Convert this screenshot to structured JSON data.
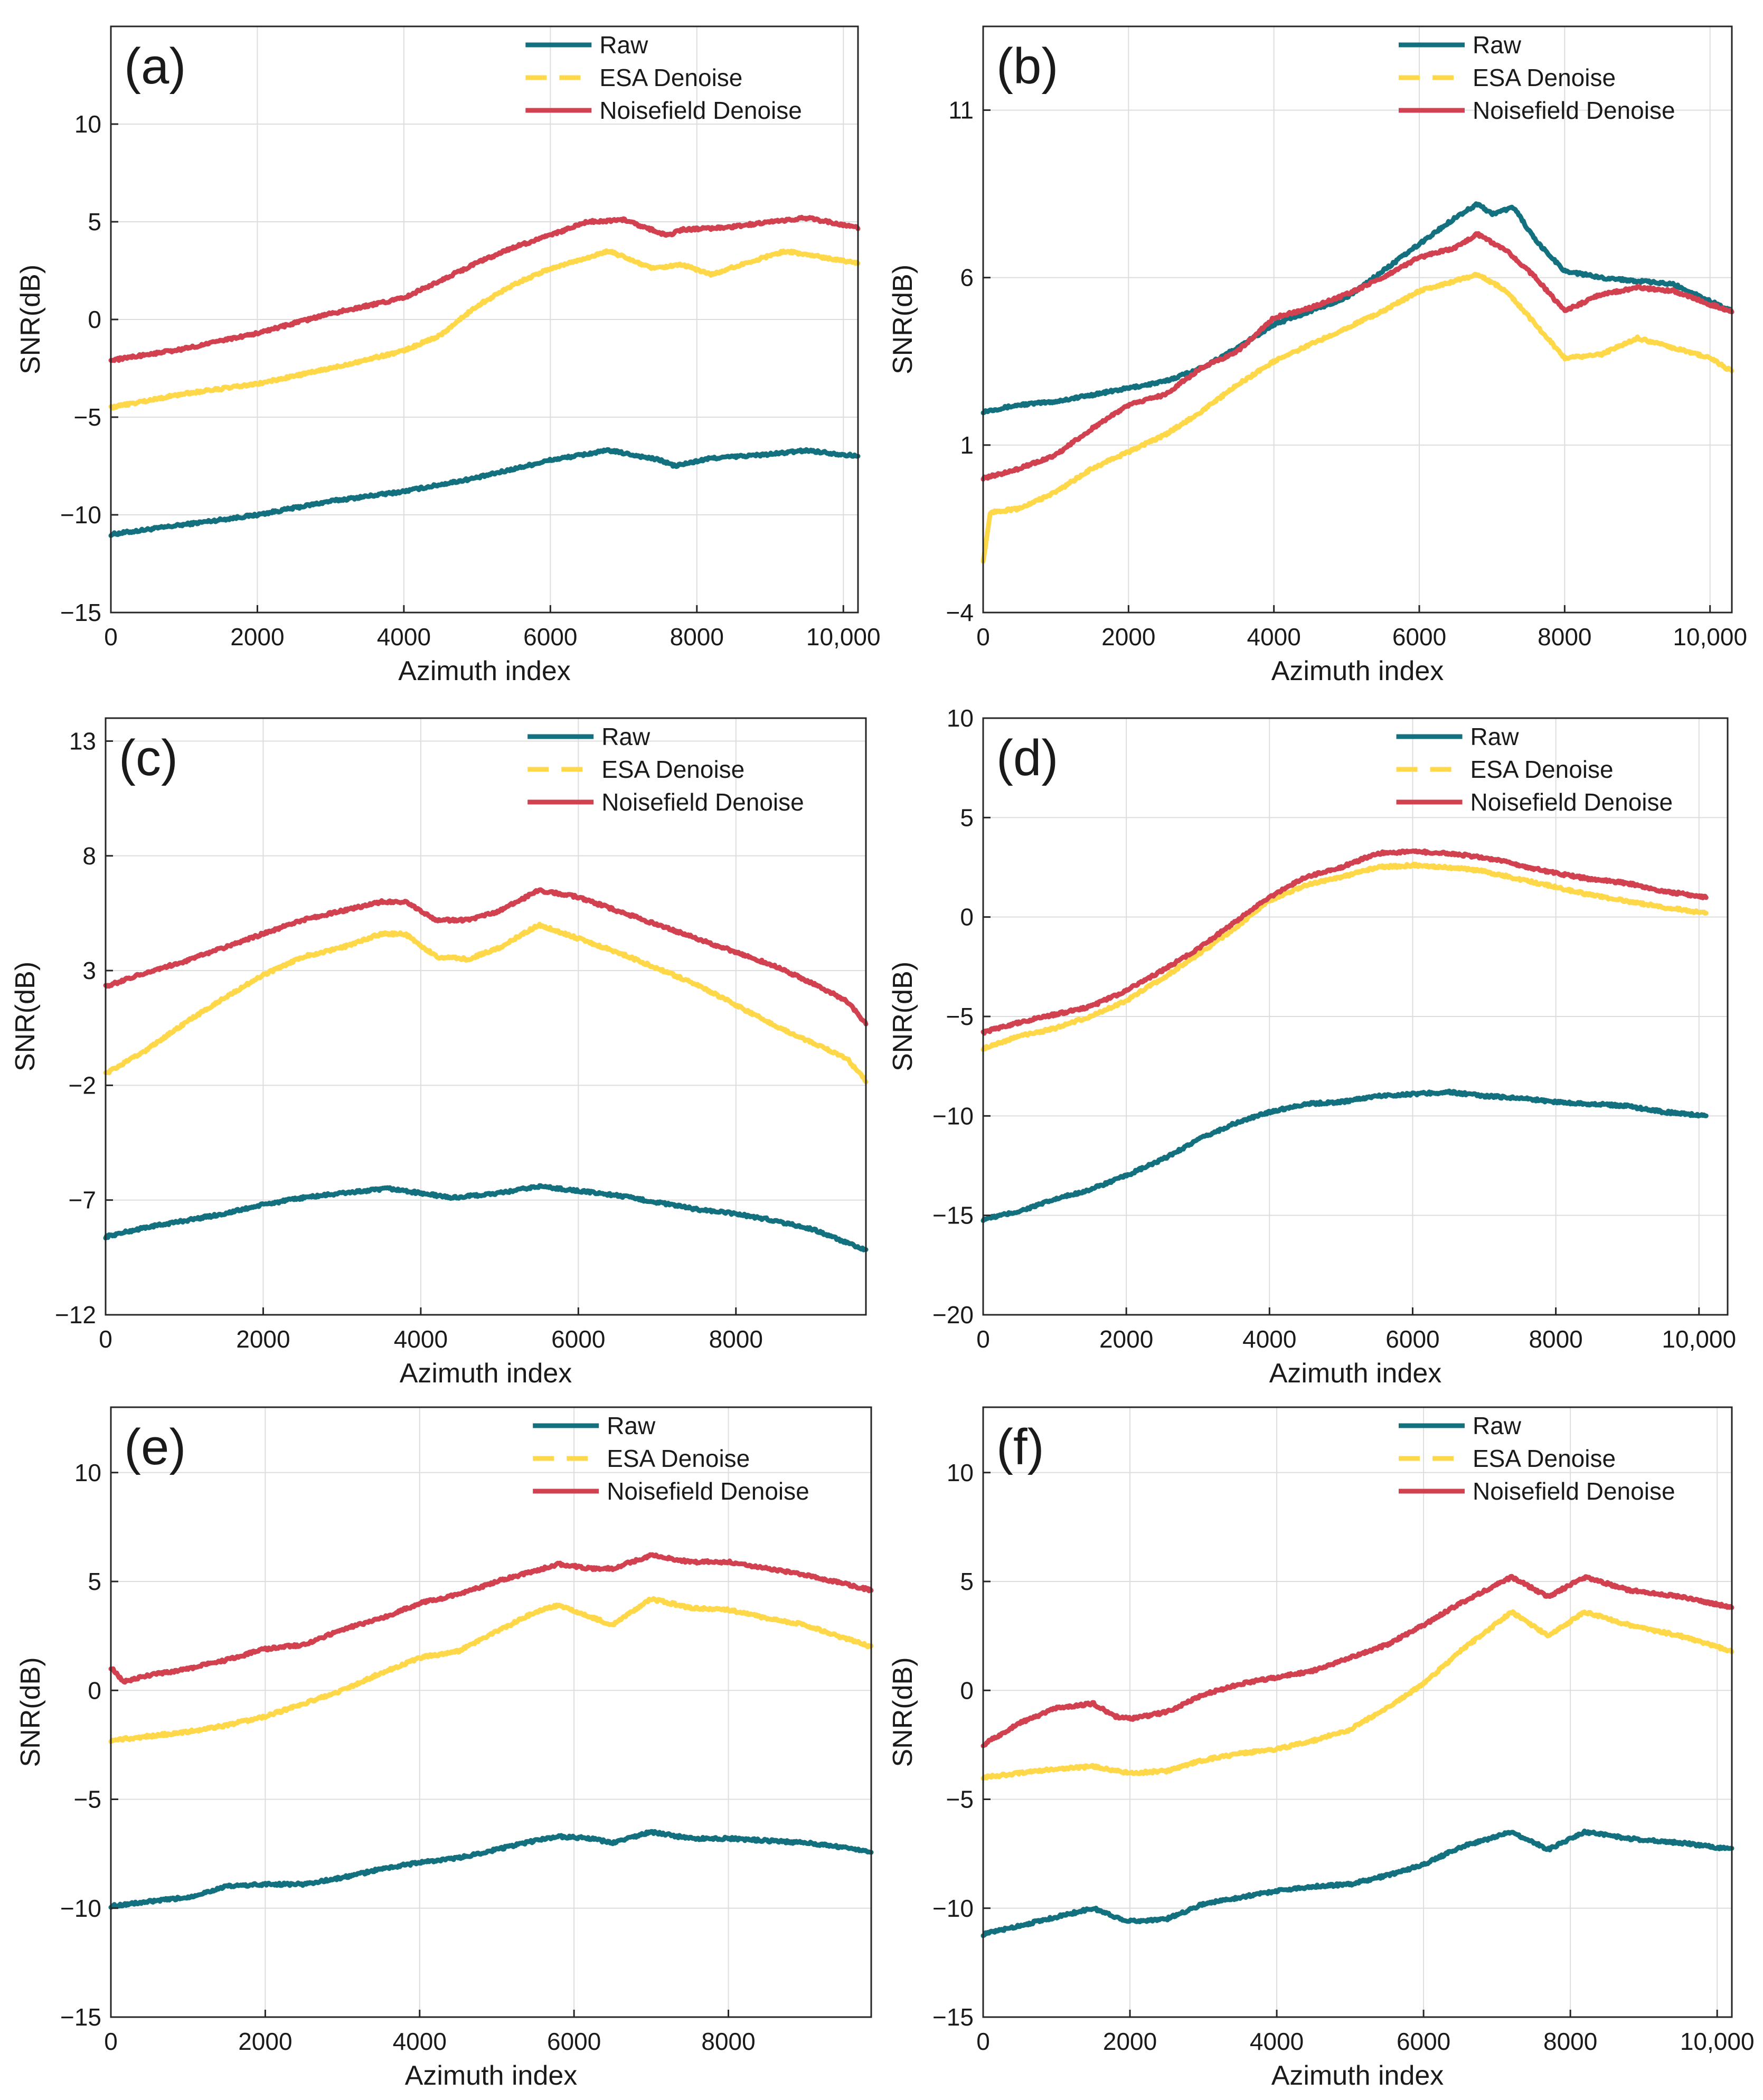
{
  "figure": {
    "colors": {
      "raw": "#13707F",
      "esa": "#FFD84A",
      "nf": "#D24150",
      "grid": "#DDDDDD",
      "axis": "#262626"
    },
    "legend_labels": [
      "Raw",
      "ESA Denoise",
      "Noisefield Denoise"
    ]
  },
  "chart_data": [
    {
      "id": "a",
      "panel_label": "(a)",
      "type": "line",
      "xlabel": "Azimuth index",
      "ylabel": "SNR(dB)",
      "xlim": [
        0,
        10200
      ],
      "ylim": [
        -15,
        15
      ],
      "xticks": [
        0,
        2000,
        4000,
        6000,
        8000,
        10000
      ],
      "xtick_labels": [
        "0",
        "2000",
        "4000",
        "6000",
        "8000",
        "10,000"
      ],
      "yticks": [
        -15,
        -10,
        -5,
        0,
        5,
        10
      ],
      "ytick_labels": [
        "−15",
        "−10",
        "−5",
        "0",
        "5",
        "10"
      ],
      "series": [
        {
          "name": "Raw",
          "x": [
            0,
            1000,
            2000,
            3000,
            4000,
            5000,
            6000,
            6800,
            7500,
            7700,
            8200,
            9000,
            9500,
            10200
          ],
          "y": [
            -11,
            -10.5,
            -10,
            -9.3,
            -8.8,
            -8.1,
            -7.2,
            -6.7,
            -7.2,
            -7.5,
            -7.1,
            -6.9,
            -6.7,
            -7.0
          ]
        },
        {
          "name": "ESA Denoise",
          "x": [
            0,
            1000,
            2000,
            3000,
            4000,
            4500,
            5000,
            5500,
            6000,
            6800,
            7400,
            7800,
            8200,
            8600,
            9200,
            10200
          ],
          "y": [
            -4.5,
            -3.8,
            -3.3,
            -2.5,
            -1.6,
            -0.8,
            0.7,
            1.8,
            2.6,
            3.5,
            2.6,
            2.8,
            2.3,
            2.8,
            3.5,
            2.9
          ]
        },
        {
          "name": "Noisefield Denoise",
          "x": [
            0,
            1000,
            2000,
            3000,
            4000,
            4500,
            5000,
            5500,
            6000,
            6500,
            7000,
            7600,
            7800,
            8400,
            9000,
            9500,
            10200
          ],
          "y": [
            -2.1,
            -1.5,
            -0.7,
            0.3,
            1.1,
            2.0,
            2.9,
            3.7,
            4.3,
            5.0,
            5.1,
            4.3,
            4.6,
            4.7,
            5.0,
            5.2,
            4.7
          ]
        }
      ]
    },
    {
      "id": "b",
      "panel_label": "(b)",
      "type": "line",
      "xlabel": "Azimuth index",
      "ylabel": "SNR(dB)",
      "xlim": [
        0,
        10300
      ],
      "ylim": [
        -4,
        13.5
      ],
      "xticks": [
        0,
        2000,
        4000,
        6000,
        8000,
        10000
      ],
      "xtick_labels": [
        "0",
        "2000",
        "4000",
        "6000",
        "8000",
        "10,000"
      ],
      "yticks": [
        -4,
        1,
        6,
        11
      ],
      "ytick_labels": [
        "−4",
        "1",
        "6",
        "11"
      ],
      "series": [
        {
          "name": "Raw",
          "x": [
            0,
            500,
            1000,
            1500,
            2000,
            2500,
            3000,
            3500,
            4000,
            4500,
            5000,
            5500,
            6000,
            6500,
            6800,
            7000,
            7300,
            7600,
            8000,
            8500,
            9000,
            9500,
            10000,
            10300
          ],
          "y": [
            2.0,
            2.2,
            2.3,
            2.5,
            2.7,
            2.9,
            3.3,
            3.9,
            4.6,
            5.0,
            5.4,
            6.2,
            7.0,
            7.8,
            8.2,
            7.9,
            8.1,
            7.1,
            6.2,
            6.0,
            5.9,
            5.8,
            5.3,
            5.0
          ]
        },
        {
          "name": "ESA Denoise",
          "x": [
            0,
            100,
            500,
            1000,
            1500,
            2000,
            2500,
            3000,
            3500,
            4000,
            4500,
            5000,
            5500,
            6000,
            6500,
            6800,
            7200,
            7600,
            8000,
            8500,
            9000,
            9500,
            10000,
            10300
          ],
          "y": [
            -2.5,
            -1.0,
            -0.9,
            -0.4,
            0.3,
            0.8,
            1.3,
            2.0,
            2.8,
            3.5,
            4.0,
            4.5,
            5.0,
            5.6,
            5.9,
            6.1,
            5.6,
            4.6,
            3.6,
            3.7,
            4.2,
            3.9,
            3.6,
            3.2
          ]
        },
        {
          "name": "Noisefield Denoise",
          "x": [
            0,
            500,
            1000,
            1500,
            2000,
            2500,
            3000,
            3500,
            4000,
            4500,
            5000,
            5500,
            6000,
            6500,
            6800,
            7200,
            7600,
            8000,
            8500,
            9000,
            9500,
            10000,
            10300
          ],
          "y": [
            0.0,
            0.3,
            0.7,
            1.5,
            2.2,
            2.5,
            3.3,
            3.8,
            4.8,
            5.1,
            5.5,
            6.0,
            6.6,
            6.9,
            7.3,
            6.8,
            6.0,
            5.0,
            5.5,
            5.7,
            5.6,
            5.2,
            5.0
          ]
        }
      ]
    },
    {
      "id": "c",
      "panel_label": "(c)",
      "type": "line",
      "xlabel": "Azimuth index",
      "ylabel": "SNR(dB)",
      "xlim": [
        0,
        9650
      ],
      "ylim": [
        -12,
        14
      ],
      "xticks": [
        0,
        2000,
        4000,
        6000,
        8000
      ],
      "xtick_labels": [
        "0",
        "2000",
        "4000",
        "6000",
        "8000"
      ],
      "yticks": [
        -12,
        -7,
        -2,
        3,
        8,
        13
      ],
      "ytick_labels": [
        "−12",
        "−7",
        "−2",
        "3",
        "8",
        "13"
      ],
      "series": [
        {
          "name": "Raw",
          "x": [
            0,
            500,
            1000,
            1500,
            2000,
            2500,
            3000,
            3600,
            4000,
            4400,
            5000,
            5500,
            6000,
            6500,
            7000,
            7500,
            8000,
            8500,
            9000,
            9650
          ],
          "y": [
            -8.6,
            -8.2,
            -7.9,
            -7.6,
            -7.2,
            -6.9,
            -6.7,
            -6.5,
            -6.7,
            -6.9,
            -6.7,
            -6.4,
            -6.6,
            -6.8,
            -7.1,
            -7.4,
            -7.6,
            -7.9,
            -8.3,
            -9.2
          ]
        },
        {
          "name": "ESA Denoise",
          "x": [
            0,
            500,
            1000,
            1500,
            2000,
            2500,
            3000,
            3500,
            3800,
            4200,
            4600,
            5000,
            5500,
            6000,
            6500,
            7000,
            7500,
            8000,
            8500,
            9000,
            9400,
            9650
          ],
          "y": [
            -1.5,
            -0.5,
            0.7,
            1.8,
            2.8,
            3.6,
            4.0,
            4.6,
            4.6,
            3.6,
            3.5,
            4.0,
            5.0,
            4.4,
            3.8,
            3.1,
            2.4,
            1.5,
            0.6,
            -0.2,
            -0.8,
            -1.8
          ]
        },
        {
          "name": "Noisefield Denoise",
          "x": [
            0,
            500,
            1000,
            1500,
            2000,
            2500,
            3000,
            3500,
            3800,
            4200,
            4600,
            5000,
            5500,
            6000,
            6500,
            7000,
            7500,
            8000,
            8500,
            9000,
            9400,
            9650
          ],
          "y": [
            2.3,
            2.9,
            3.4,
            4.0,
            4.6,
            5.2,
            5.6,
            6.0,
            6.0,
            5.2,
            5.2,
            5.6,
            6.5,
            6.2,
            5.6,
            5.0,
            4.4,
            3.8,
            3.2,
            2.4,
            1.7,
            0.7
          ]
        }
      ]
    },
    {
      "id": "d",
      "panel_label": "(d)",
      "type": "line",
      "xlabel": "Azimuth index",
      "ylabel": "SNR(dB)",
      "xlim": [
        0,
        10400
      ],
      "ylim": [
        -20,
        10
      ],
      "xticks": [
        0,
        2000,
        4000,
        6000,
        8000,
        10000
      ],
      "xtick_labels": [
        "0",
        "2000",
        "4000",
        "6000",
        "8000",
        "10,000"
      ],
      "yticks": [
        -20,
        -15,
        -10,
        -5,
        0,
        5,
        10
      ],
      "ytick_labels": [
        "−20",
        "−15",
        "−10",
        "−5",
        "0",
        "5",
        "10"
      ],
      "series": [
        {
          "name": "Raw",
          "x": [
            0,
            500,
            1000,
            1500,
            2000,
            2500,
            3000,
            3500,
            4000,
            4500,
            5000,
            5500,
            6000,
            6500,
            7000,
            7500,
            8000,
            8500,
            9000,
            9500,
            10100
          ],
          "y": [
            -15.2,
            -14.8,
            -14.2,
            -13.7,
            -13.0,
            -12.2,
            -11.2,
            -10.4,
            -9.8,
            -9.4,
            -9.3,
            -9.0,
            -8.9,
            -8.8,
            -9.0,
            -9.1,
            -9.3,
            -9.4,
            -9.5,
            -9.8,
            -10.0
          ]
        },
        {
          "name": "ESA Denoise",
          "x": [
            0,
            500,
            1000,
            1500,
            2000,
            2500,
            3000,
            3500,
            4000,
            4500,
            5000,
            5500,
            6000,
            6500,
            7000,
            7500,
            8000,
            8500,
            9000,
            9500,
            10100
          ],
          "y": [
            -6.6,
            -6.0,
            -5.6,
            -5.0,
            -4.2,
            -3.1,
            -1.9,
            -0.6,
            0.8,
            1.6,
            2.0,
            2.5,
            2.6,
            2.5,
            2.3,
            1.9,
            1.5,
            1.1,
            0.8,
            0.5,
            0.2
          ]
        },
        {
          "name": "Noisefield Denoise",
          "x": [
            0,
            500,
            1000,
            1500,
            2000,
            2500,
            3000,
            3500,
            4000,
            4500,
            5000,
            5500,
            6000,
            6500,
            7000,
            7500,
            8000,
            8500,
            9000,
            9500,
            10100
          ],
          "y": [
            -5.8,
            -5.3,
            -4.9,
            -4.5,
            -3.7,
            -2.7,
            -1.6,
            -0.3,
            1.0,
            2.0,
            2.5,
            3.2,
            3.3,
            3.2,
            3.0,
            2.6,
            2.2,
            1.9,
            1.7,
            1.3,
            1.0
          ]
        }
      ]
    },
    {
      "id": "e",
      "panel_label": "(e)",
      "type": "line",
      "xlabel": "Azimuth index",
      "ylabel": "SNR(dB)",
      "xlim": [
        0,
        9850
      ],
      "ylim": [
        -15,
        13
      ],
      "xticks": [
        0,
        2000,
        4000,
        6000,
        8000
      ],
      "xtick_labels": [
        "0",
        "2000",
        "4000",
        "6000",
        "8000"
      ],
      "yticks": [
        -15,
        -10,
        -5,
        0,
        5,
        10
      ],
      "ytick_labels": [
        "−15",
        "−10",
        "−5",
        "0",
        "5",
        "10"
      ],
      "series": [
        {
          "name": "Raw",
          "x": [
            0,
            500,
            1000,
            1500,
            2000,
            2500,
            3000,
            3500,
            4000,
            4500,
            5000,
            5500,
            5800,
            6200,
            6500,
            7000,
            7500,
            8000,
            8500,
            9000,
            9500,
            9850
          ],
          "y": [
            -9.9,
            -9.7,
            -9.5,
            -9.0,
            -8.9,
            -8.9,
            -8.6,
            -8.2,
            -7.9,
            -7.7,
            -7.3,
            -6.9,
            -6.7,
            -6.8,
            -7.0,
            -6.5,
            -6.8,
            -6.8,
            -6.9,
            -7.0,
            -7.2,
            -7.4
          ]
        },
        {
          "name": "ESA Denoise",
          "x": [
            0,
            500,
            1000,
            1500,
            2000,
            2500,
            3000,
            3500,
            4000,
            4500,
            5000,
            5500,
            5800,
            6200,
            6500,
            7000,
            7500,
            8000,
            8500,
            9000,
            9500,
            9850
          ],
          "y": [
            -2.3,
            -2.1,
            -1.9,
            -1.6,
            -1.2,
            -0.6,
            0.0,
            0.8,
            1.5,
            1.8,
            2.7,
            3.6,
            3.9,
            3.4,
            3.0,
            4.2,
            3.8,
            3.7,
            3.3,
            3.0,
            2.4,
            2.0
          ]
        },
        {
          "name": "Noisefield Denoise",
          "x": [
            0,
            50,
            150,
            500,
            1000,
            1500,
            2000,
            2500,
            3000,
            3500,
            4000,
            4500,
            5000,
            5500,
            5800,
            6200,
            6500,
            7000,
            7500,
            8000,
            8500,
            9000,
            9500,
            9850
          ],
          "y": [
            1.0,
            0.9,
            0.4,
            0.7,
            1.0,
            1.4,
            1.9,
            2.1,
            2.8,
            3.3,
            4.0,
            4.4,
            5.0,
            5.5,
            5.8,
            5.6,
            5.6,
            6.2,
            5.9,
            5.9,
            5.6,
            5.3,
            4.9,
            4.6
          ]
        }
      ]
    },
    {
      "id": "f",
      "panel_label": "(f)",
      "type": "line",
      "xlabel": "Azimuth index",
      "ylabel": "SNR(dB)",
      "xlim": [
        0,
        10200
      ],
      "ylim": [
        -15,
        13
      ],
      "xticks": [
        0,
        2000,
        4000,
        6000,
        8000,
        10000
      ],
      "xtick_labels": [
        "0",
        "2000",
        "4000",
        "6000",
        "8000",
        "10,000"
      ],
      "yticks": [
        -15,
        -10,
        -5,
        0,
        5,
        10
      ],
      "ytick_labels": [
        "−15",
        "−10",
        "−5",
        "0",
        "5",
        "10"
      ],
      "series": [
        {
          "name": "Raw",
          "x": [
            0,
            500,
            1000,
            1500,
            1800,
            2000,
            2500,
            3000,
            3500,
            4000,
            4500,
            5000,
            5500,
            6000,
            6500,
            7200,
            7700,
            8200,
            8800,
            9500,
            10200
          ],
          "y": [
            -11.2,
            -10.8,
            -10.4,
            -10.0,
            -10.4,
            -10.6,
            -10.5,
            -9.8,
            -9.5,
            -9.2,
            -9.0,
            -8.9,
            -8.5,
            -8.0,
            -7.2,
            -6.5,
            -7.3,
            -6.5,
            -6.8,
            -7.0,
            -7.3
          ]
        },
        {
          "name": "ESA Denoise",
          "x": [
            0,
            500,
            1000,
            1500,
            2000,
            2500,
            3000,
            3500,
            4000,
            4500,
            5000,
            5500,
            6000,
            6500,
            7200,
            7700,
            8200,
            8800,
            9500,
            10200
          ],
          "y": [
            -4.0,
            -3.8,
            -3.6,
            -3.5,
            -3.8,
            -3.7,
            -3.2,
            -2.9,
            -2.7,
            -2.3,
            -1.8,
            -0.8,
            0.3,
            1.8,
            3.6,
            2.5,
            3.6,
            3.0,
            2.5,
            1.8
          ]
        },
        {
          "name": "Noisefield Denoise",
          "x": [
            0,
            500,
            1000,
            1500,
            1800,
            2000,
            2500,
            3000,
            3500,
            4000,
            4500,
            5000,
            5500,
            6000,
            6500,
            7200,
            7700,
            8200,
            8800,
            9500,
            10200
          ],
          "y": [
            -2.5,
            -1.5,
            -0.8,
            -0.6,
            -1.2,
            -1.3,
            -1.0,
            -0.2,
            0.3,
            0.6,
            0.9,
            1.5,
            2.1,
            3.0,
            4.0,
            5.2,
            4.3,
            5.2,
            4.6,
            4.3,
            3.8
          ]
        }
      ]
    }
  ]
}
